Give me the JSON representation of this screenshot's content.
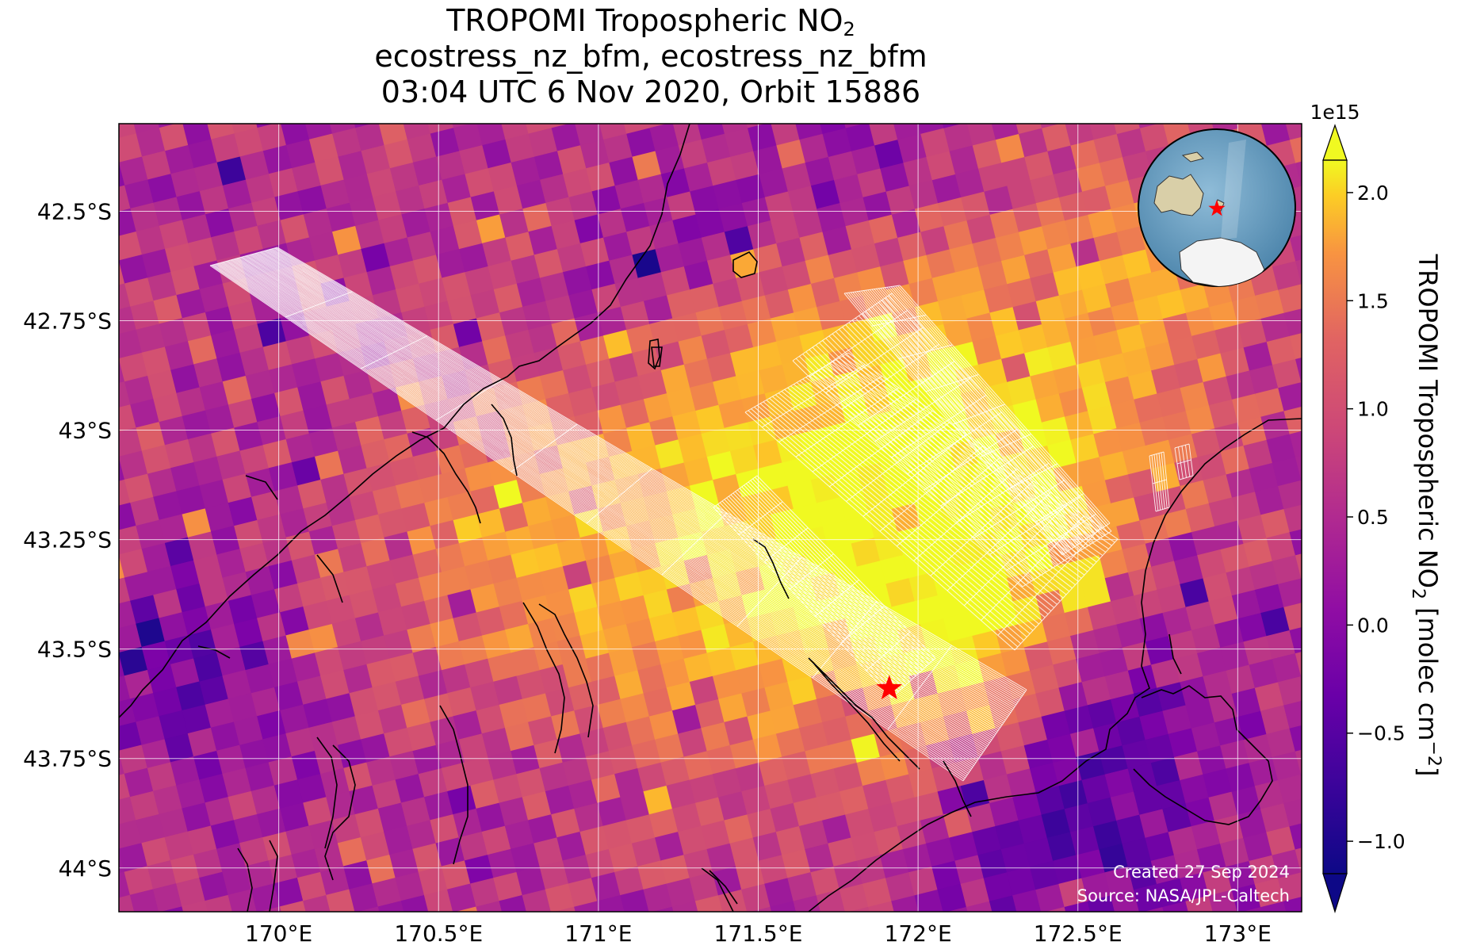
{
  "title": {
    "line1_prefix": "TROPOMI Tropospheric NO",
    "line1_sub": "2",
    "line2": "ecostress_nz_bfm, ecostress_nz_bfm",
    "line3": "03:04 UTC 6 Nov 2020, Orbit 15886"
  },
  "map": {
    "lon_range": [
      169.5,
      173.2
    ],
    "lat_range": [
      -44.1,
      -42.3
    ],
    "lon_ticks": [
      {
        "value": 170.0,
        "label": "170°E"
      },
      {
        "value": 170.5,
        "label": "170.5°E"
      },
      {
        "value": 171.0,
        "label": "171°E"
      },
      {
        "value": 171.5,
        "label": "171.5°E"
      },
      {
        "value": 172.0,
        "label": "172°E"
      },
      {
        "value": 172.5,
        "label": "172.5°E"
      },
      {
        "value": 173.0,
        "label": "173°E"
      }
    ],
    "lat_ticks": [
      {
        "value": -42.5,
        "label": "42.5°S"
      },
      {
        "value": -42.75,
        "label": "42.75°S"
      },
      {
        "value": -43.0,
        "label": "43°S"
      },
      {
        "value": -43.25,
        "label": "43.25°S"
      },
      {
        "value": -43.5,
        "label": "43.5°S"
      },
      {
        "value": -43.75,
        "label": "43.75°S"
      },
      {
        "value": -44.0,
        "label": "44°S"
      }
    ],
    "grid": true,
    "target_marker": {
      "lon": 171.91,
      "lat": -43.59,
      "color": "#ff0000"
    },
    "credit_line1": "Created 27 Sep 2024",
    "credit_line2": "Source: NASA/JPL-Caltech",
    "inset_globe": "orthographic-globe",
    "colormap": "plasma"
  },
  "colorbar": {
    "range": [
      -1.15,
      2.15
    ],
    "extend": "both",
    "multiplier": "1e15",
    "ticks": [
      {
        "value": -1.0,
        "label": "−1.0"
      },
      {
        "value": -0.5,
        "label": "−0.5"
      },
      {
        "value": 0.0,
        "label": "0.0"
      },
      {
        "value": 0.5,
        "label": "0.5"
      },
      {
        "value": 1.0,
        "label": "1.0"
      },
      {
        "value": 1.5,
        "label": "1.5"
      },
      {
        "value": 2.0,
        "label": "2.0"
      }
    ],
    "label_prefix": "TROPOMI Tropospheric NO",
    "label_sub": "2",
    "label_mid": " [molec cm",
    "label_sup": "−2",
    "label_suffix": "]"
  },
  "colors": {
    "grid": "#ffffff",
    "coastline": "#000000",
    "swath": "#ffffff",
    "credit": "#ffffff"
  }
}
